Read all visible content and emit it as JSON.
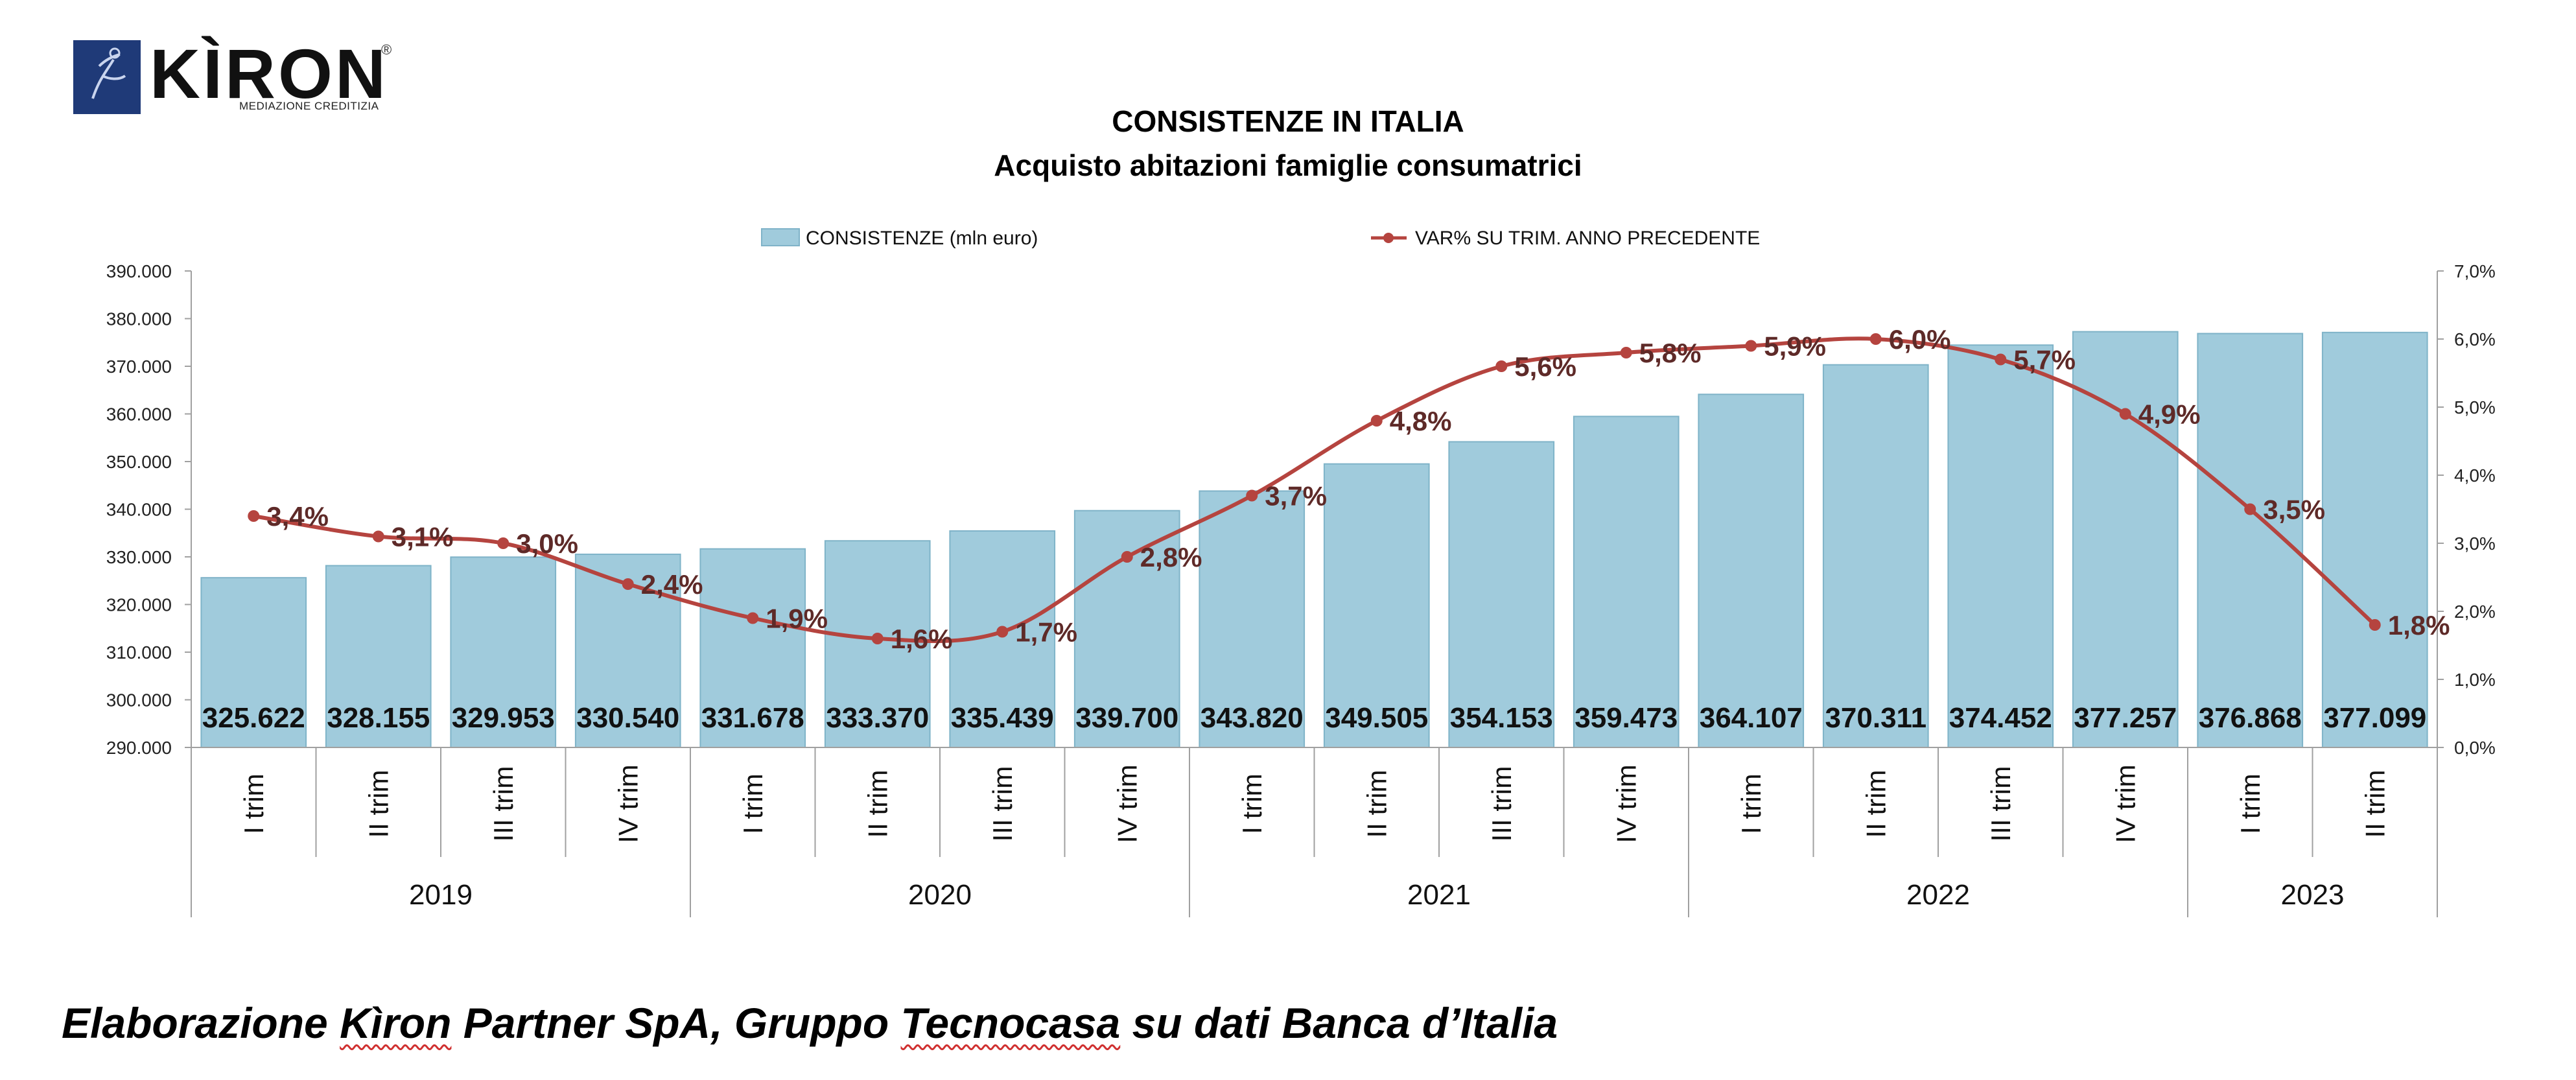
{
  "logo": {
    "brand": "KÌRON",
    "tagline": "MEDIAZIONE CREDITIZIA",
    "registered": "®"
  },
  "chart_data": {
    "type": "bar",
    "title": "CONSISTENZE IN ITALIA",
    "subtitle": "Acquisto abitazioni famiglie consumatrici",
    "categories": [
      "I trim",
      "II trim",
      "III trim",
      "IV trim",
      "I trim",
      "II trim",
      "III trim",
      "IV trim",
      "I trim",
      "II trim",
      "III trim",
      "IV trim",
      "I trim",
      "II trim",
      "III trim",
      "IV trim",
      "I trim",
      "II trim"
    ],
    "groups": [
      {
        "label": "2019",
        "count": 4
      },
      {
        "label": "2020",
        "count": 4
      },
      {
        "label": "2021",
        "count": 4
      },
      {
        "label": "2022",
        "count": 4
      },
      {
        "label": "2023",
        "count": 2
      }
    ],
    "series": [
      {
        "name": "CONSISTENZE (mln euro)",
        "type": "bar",
        "axis": "left",
        "color": "#a0cbdc",
        "values": [
          325622,
          328155,
          329953,
          330540,
          331678,
          333370,
          335439,
          339700,
          343820,
          349505,
          354153,
          359473,
          364107,
          370311,
          374452,
          377257,
          376868,
          377099
        ],
        "labels": [
          "325.622",
          "328.155",
          "329.953",
          "330.540",
          "331.678",
          "333.370",
          "335.439",
          "339.700",
          "343.820",
          "349.505",
          "354.153",
          "359.473",
          "364.107",
          "370.311",
          "374.452",
          "377.257",
          "376.868",
          "377.099"
        ]
      },
      {
        "name": "VAR% SU TRIM. ANNO PRECEDENTE",
        "type": "line",
        "axis": "right",
        "color": "#b5443f",
        "values": [
          3.4,
          3.1,
          3.0,
          2.4,
          1.9,
          1.6,
          1.7,
          2.8,
          3.7,
          4.8,
          5.6,
          5.8,
          5.9,
          6.0,
          5.7,
          4.9,
          3.5,
          1.8
        ],
        "labels": [
          "3,4%",
          "3,1%",
          "3,0%",
          "2,4%",
          "1,9%",
          "1,6%",
          "1,7%",
          "2,8%",
          "3,7%",
          "4,8%",
          "5,6%",
          "5,8%",
          "5,9%",
          "6,0%",
          "5,7%",
          "4,9%",
          "3,5%",
          "1,8%"
        ]
      }
    ],
    "y_left": {
      "range": [
        290000,
        390000
      ],
      "ticks": [
        "290.000",
        "300.000",
        "310.000",
        "320.000",
        "330.000",
        "340.000",
        "350.000",
        "360.000",
        "370.000",
        "380.000",
        "390.000"
      ]
    },
    "y_right": {
      "range": [
        0,
        7
      ],
      "ticks": [
        "0,0%",
        "1,0%",
        "2,0%",
        "3,0%",
        "4,0%",
        "5,0%",
        "6,0%",
        "7,0%"
      ]
    },
    "legend_position": "top-center",
    "grid": false
  },
  "footnote": {
    "pre": "Elaborazione ",
    "word1": "Kìron",
    "mid": " Partner SpA, Gruppo ",
    "word2": "Tecnocasa",
    "post": " su dati Banca d’Italia"
  }
}
